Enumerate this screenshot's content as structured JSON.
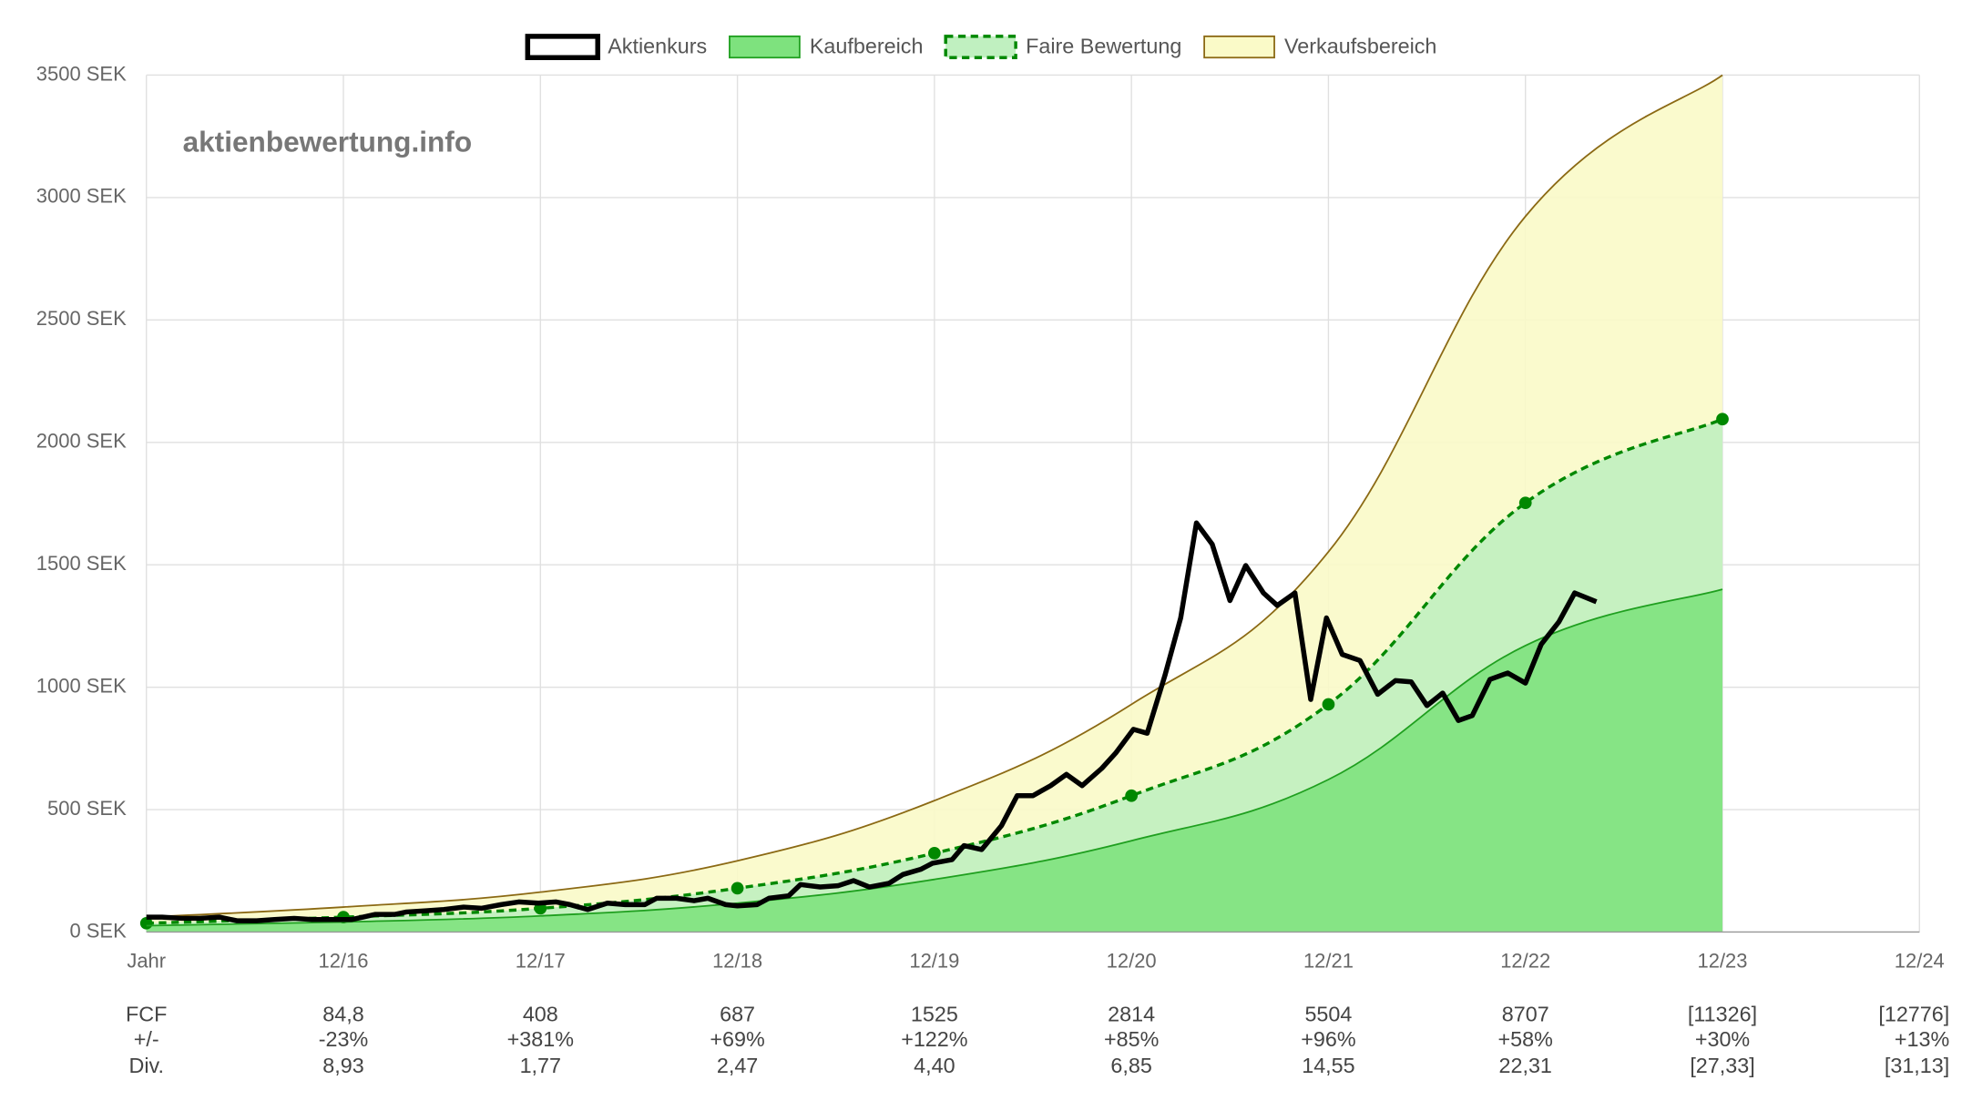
{
  "chart_data": {
    "type": "line",
    "annotation": "aktienbewertung.info",
    "xlim": [
      0,
      9
    ],
    "ylim": [
      0,
      3500
    ],
    "xticks": [
      {
        "value": 0,
        "label": "Jahr"
      },
      {
        "value": 1,
        "label": "12/16"
      },
      {
        "value": 2,
        "label": "12/17"
      },
      {
        "value": 3,
        "label": "12/18"
      },
      {
        "value": 4,
        "label": "12/19"
      },
      {
        "value": 5,
        "label": "12/20"
      },
      {
        "value": 6,
        "label": "12/21"
      },
      {
        "value": 7,
        "label": "12/22"
      },
      {
        "value": 8,
        "label": "12/23"
      },
      {
        "value": 9,
        "label": "12/24"
      }
    ],
    "yticks": [
      {
        "value": 0,
        "label": "0 SEK"
      },
      {
        "value": 500,
        "label": "500 SEK"
      },
      {
        "value": 1000,
        "label": "1000 SEK"
      },
      {
        "value": 1500,
        "label": "1500 SEK"
      },
      {
        "value": 2000,
        "label": "2000 SEK"
      },
      {
        "value": 2500,
        "label": "2500 SEK"
      },
      {
        "value": 3000,
        "label": "3000 SEK"
      },
      {
        "value": 3500,
        "label": "3500 SEK"
      }
    ],
    "grid": true,
    "legend": "top",
    "series": [
      {
        "name": "Aktienkurs",
        "color": "#000000",
        "fill": null,
        "dashed": false,
        "markers": false,
        "smooth": false,
        "x": [
          0,
          0.08,
          0.18,
          0.27,
          0.37,
          0.46,
          0.56,
          0.65,
          0.75,
          0.84,
          0.94,
          1.04,
          1.1,
          1.16,
          1.26,
          1.32,
          1.42,
          1.51,
          1.61,
          1.7,
          1.8,
          1.89,
          1.99,
          2.08,
          2.15,
          2.24,
          2.34,
          2.43,
          2.53,
          2.59,
          2.69,
          2.78,
          2.85,
          2.94,
          3.0,
          3.1,
          3.16,
          3.26,
          3.32,
          3.42,
          3.51,
          3.59,
          3.67,
          3.77,
          3.84,
          3.93,
          3.99,
          4.09,
          4.15,
          4.24,
          4.34,
          4.42,
          4.5,
          4.59,
          4.67,
          4.75,
          4.85,
          4.92,
          5.01,
          5.08,
          5.17,
          5.25,
          5.33,
          5.41,
          5.5,
          5.58,
          5.67,
          5.74,
          5.83,
          5.91,
          5.99,
          6.07,
          6.16,
          6.25,
          6.34,
          6.42,
          6.5,
          6.58,
          6.66,
          6.73,
          6.82,
          6.91,
          7.0,
          7.08,
          7.17,
          7.25,
          7.36
        ],
        "values": [
          61,
          61,
          56,
          56,
          61,
          46,
          46,
          51,
          56,
          51,
          51,
          51,
          61,
          72,
          72,
          82,
          87,
          92,
          102,
          97,
          112,
          123,
          118,
          123,
          112,
          92,
          118,
          112,
          112,
          138,
          138,
          128,
          138,
          112,
          107,
          112,
          138,
          148,
          194,
          184,
          189,
          210,
          184,
          199,
          235,
          256,
          281,
          296,
          353,
          337,
          434,
          557,
          557,
          598,
          644,
          598,
          669,
          731,
          828,
          812,
          1048,
          1283,
          1671,
          1584,
          1354,
          1497,
          1385,
          1334,
          1385,
          950,
          1283,
          1134,
          1109,
          971,
          1027,
          1022,
          925,
          976,
          864,
          884,
          1032,
          1058,
          1017,
          1175,
          1267,
          1385,
          1349
        ]
      },
      {
        "name": "Kaufbereich",
        "color": "#1f9f1f",
        "fill": "#7ee27e",
        "dashed": false,
        "markers": false,
        "smooth": true,
        "x": [
          0,
          1,
          2,
          3,
          4,
          5,
          6,
          7,
          8
        ],
        "values": [
          26,
          41,
          66,
          118,
          215,
          373,
          623,
          1170,
          1400
        ]
      },
      {
        "name": "Faire Bewertung",
        "color": "#008800",
        "fill": "#c0f0c0",
        "dashed": true,
        "markers": true,
        "smooth": true,
        "x": [
          0,
          1,
          2,
          3,
          4,
          5,
          6,
          7,
          8
        ],
        "values": [
          36,
          61,
          97,
          179,
          322,
          557,
          930,
          1753,
          2095
        ]
      },
      {
        "name": "Verkaufsbereich",
        "color": "#8b6914",
        "fill": "#fafac8",
        "dashed": false,
        "markers": false,
        "smooth": true,
        "x": [
          0,
          1,
          2,
          3,
          4,
          5,
          6,
          7,
          8
        ],
        "values": [
          61,
          102,
          163,
          291,
          537,
          930,
          1553,
          2923,
          3500
        ]
      }
    ]
  },
  "table": {
    "rows": [
      {
        "label": "FCF",
        "values": [
          "84,8",
          "408",
          "687",
          "1525",
          "2814",
          "5504",
          "8707",
          "[11326]",
          "[12776]"
        ]
      },
      {
        "label": "+/-",
        "values": [
          "-23%",
          "+381%",
          "+69%",
          "+122%",
          "+85%",
          "+96%",
          "+58%",
          "+30%",
          "+13%"
        ]
      },
      {
        "label": "Div.",
        "values": [
          "8,93",
          "1,77",
          "2,47",
          "4,40",
          "6,85",
          "14,55",
          "22,31",
          "[27,33]",
          "[31,13]"
        ]
      }
    ]
  }
}
